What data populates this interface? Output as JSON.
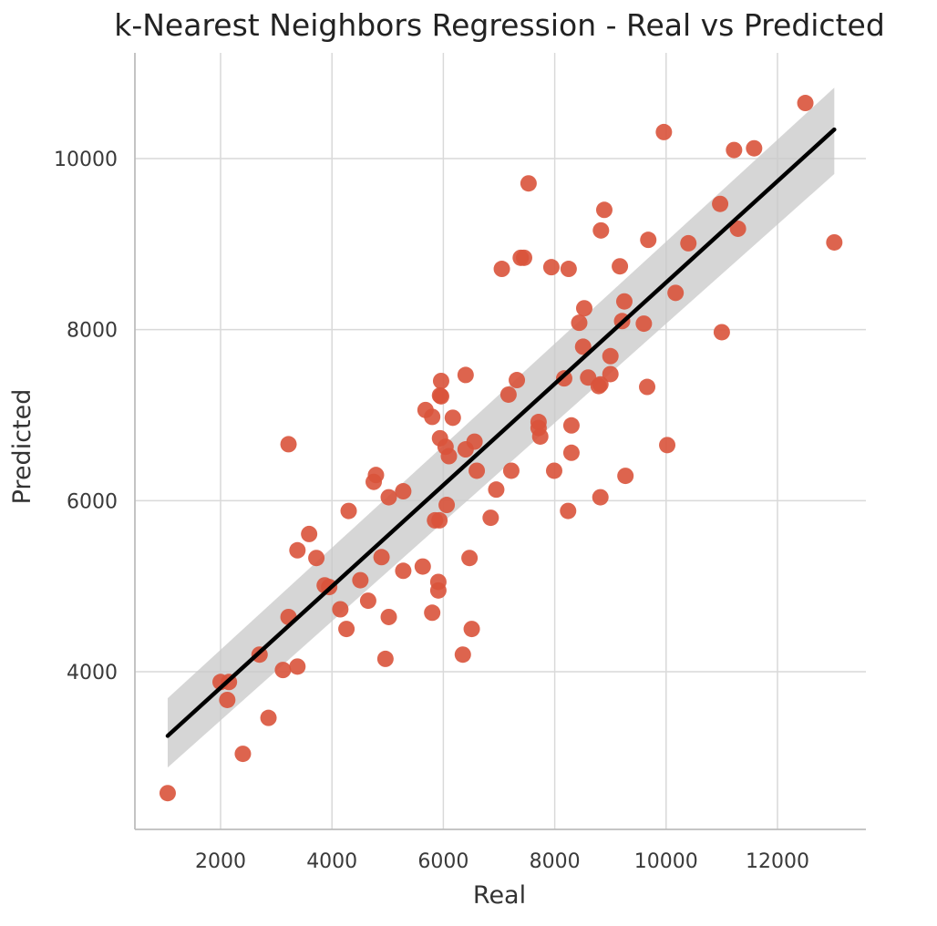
{
  "chart_data": {
    "type": "scatter",
    "title": "k-Nearest Neighbors Regression - Real vs Predicted",
    "xlabel": "Real",
    "ylabel": "Predicted",
    "xlim": [
      500,
      13600
    ],
    "ylim": [
      2200,
      11000
    ],
    "xticks": [
      2000,
      4000,
      6000,
      8000,
      10000,
      12000
    ],
    "yticks": [
      4000,
      6000,
      8000,
      10000
    ],
    "grid": true,
    "colors": {
      "points": "#d9533b",
      "regression_line": "#000000",
      "confidence_band": "#c8c8c8",
      "grid": "#d9d9d9",
      "spine": "#bdbdbd"
    },
    "series": [
      {
        "type": "scatter",
        "points": [
          [
            1050,
            2580
          ],
          [
            2000,
            3880
          ],
          [
            2150,
            3880
          ],
          [
            2120,
            3670
          ],
          [
            2400,
            3040
          ],
          [
            2700,
            4200
          ],
          [
            2860,
            3460
          ],
          [
            3120,
            4020
          ],
          [
            3220,
            6660
          ],
          [
            3220,
            4640
          ],
          [
            3380,
            4060
          ],
          [
            3380,
            5420
          ],
          [
            3590,
            5610
          ],
          [
            3720,
            5330
          ],
          [
            3870,
            5010
          ],
          [
            3950,
            4990
          ],
          [
            4150,
            4730
          ],
          [
            4260,
            4500
          ],
          [
            4300,
            5880
          ],
          [
            4510,
            5070
          ],
          [
            4650,
            4830
          ],
          [
            4750,
            6220
          ],
          [
            4790,
            6300
          ],
          [
            4890,
            5340
          ],
          [
            4960,
            4150
          ],
          [
            5020,
            6040
          ],
          [
            5020,
            4640
          ],
          [
            5280,
            6110
          ],
          [
            5280,
            5180
          ],
          [
            5630,
            5230
          ],
          [
            5680,
            7060
          ],
          [
            5800,
            4690
          ],
          [
            5800,
            6980
          ],
          [
            5850,
            5770
          ],
          [
            5930,
            5770
          ],
          [
            5910,
            5050
          ],
          [
            5910,
            4950
          ],
          [
            5940,
            7230
          ],
          [
            5960,
            7220
          ],
          [
            5960,
            7400
          ],
          [
            5940,
            6730
          ],
          [
            6040,
            6630
          ],
          [
            6060,
            5950
          ],
          [
            6100,
            6520
          ],
          [
            6170,
            6970
          ],
          [
            6350,
            4200
          ],
          [
            6400,
            7470
          ],
          [
            6400,
            6600
          ],
          [
            6470,
            5330
          ],
          [
            6510,
            4500
          ],
          [
            6560,
            6690
          ],
          [
            6600,
            6350
          ],
          [
            6850,
            5800
          ],
          [
            6950,
            6130
          ],
          [
            7050,
            8710
          ],
          [
            7170,
            7240
          ],
          [
            7220,
            6350
          ],
          [
            7320,
            7410
          ],
          [
            7390,
            8840
          ],
          [
            7450,
            8840
          ],
          [
            7530,
            9710
          ],
          [
            7710,
            6920
          ],
          [
            7710,
            6850
          ],
          [
            7740,
            6750
          ],
          [
            7940,
            8730
          ],
          [
            7990,
            6350
          ],
          [
            8170,
            7430
          ],
          [
            8240,
            5880
          ],
          [
            8250,
            8710
          ],
          [
            8300,
            6880
          ],
          [
            8300,
            6560
          ],
          [
            8440,
            8080
          ],
          [
            8510,
            7800
          ],
          [
            8530,
            8250
          ],
          [
            8600,
            7440
          ],
          [
            8790,
            7340
          ],
          [
            8820,
            7360
          ],
          [
            8820,
            6040
          ],
          [
            8830,
            9160
          ],
          [
            8890,
            9400
          ],
          [
            9000,
            7480
          ],
          [
            9000,
            7690
          ],
          [
            9170,
            8740
          ],
          [
            9210,
            8100
          ],
          [
            9250,
            8330
          ],
          [
            9270,
            6290
          ],
          [
            9600,
            8070
          ],
          [
            9660,
            7330
          ],
          [
            9680,
            9050
          ],
          [
            9960,
            10310
          ],
          [
            10020,
            6650
          ],
          [
            10170,
            8430
          ],
          [
            10400,
            9010
          ],
          [
            10970,
            9470
          ],
          [
            11000,
            7970
          ],
          [
            11220,
            10100
          ],
          [
            11290,
            9180
          ],
          [
            11580,
            10120
          ],
          [
            12500,
            10650
          ],
          [
            13020,
            9020
          ]
        ]
      },
      {
        "type": "regression",
        "x": [
          1050,
          13020
        ],
        "y": [
          3250,
          10340
        ],
        "band_lower": [
          2880,
          9820
        ],
        "band_upper": [
          3690,
          10830
        ]
      }
    ]
  }
}
